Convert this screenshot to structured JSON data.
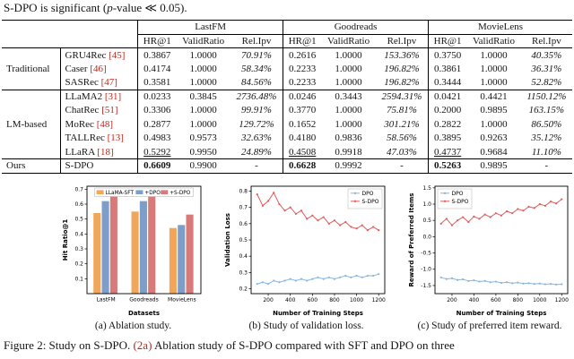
{
  "colors": {
    "citation": "#bb2a20",
    "rule": "#000000"
  },
  "page": {
    "top_text_prefix": "S-DPO is significant (",
    "top_text_italic": "p",
    "top_text_suffix": "-value ≪ 0.05)."
  },
  "table": {
    "dataset_headers": [
      "LastFM",
      "Goodreads",
      "MovieLens"
    ],
    "sub_headers": [
      "HR@1",
      "ValidRatio",
      "Rel.Ipv"
    ],
    "rows": [
      {
        "group": "Traditional",
        "group_span": 3,
        "rule_above": false,
        "method": "GRU4Rec",
        "cite": "[45]",
        "hr_style": "",
        "values": [
          "0.3867",
          "1.0000",
          "70.91%",
          "0.2616",
          "1.0000",
          "153.36%",
          "0.3750",
          "1.0000",
          "40.35%"
        ]
      },
      {
        "method": "Caser",
        "cite": "[46]",
        "hr_style": "",
        "values": [
          "0.4174",
          "1.0000",
          "58.34%",
          "0.2233",
          "1.0000",
          "196.82%",
          "0.3861",
          "1.0000",
          "36.31%"
        ]
      },
      {
        "method": "SASRec",
        "cite": "[47]",
        "hr_style": "",
        "values": [
          "0.3581",
          "1.0000",
          "84.56%",
          "0.2233",
          "1.0000",
          "196.82%",
          "0.3444",
          "1.0000",
          "52.82%"
        ]
      },
      {
        "group": "LM-based",
        "group_span": 5,
        "rule_above": true,
        "method": "LLaMA2",
        "cite": "[31]",
        "hr_style": "",
        "values": [
          "0.0233",
          "0.3845",
          "2736.48%",
          "0.0246",
          "0.3443",
          "2594.31%",
          "0.0421",
          "0.4421",
          "1150.12%"
        ]
      },
      {
        "method": "ChatRec",
        "cite": "[51]",
        "hr_style": "",
        "values": [
          "0.3306",
          "1.0000",
          "99.91%",
          "0.3770",
          "1.0000",
          "75.81%",
          "0.2000",
          "0.9895",
          "163.15%"
        ]
      },
      {
        "method": "MoRec",
        "cite": "[48]",
        "hr_style": "",
        "values": [
          "0.2877",
          "1.0000",
          "129.72%",
          "0.1652",
          "1.0000",
          "301.21%",
          "0.2822",
          "1.0000",
          "86.50%"
        ]
      },
      {
        "method": "TALLRec",
        "cite": "[13]",
        "hr_style": "",
        "values": [
          "0.4983",
          "0.9573",
          "32.63%",
          "0.4180",
          "0.9836",
          "58.56%",
          "0.3895",
          "0.9263",
          "35.12%"
        ]
      },
      {
        "method": "LLaRA",
        "cite": "[18]",
        "hr_style": "underline",
        "values": [
          "0.5292",
          "0.9950",
          "24.89%",
          "0.4508",
          "0.9918",
          "47.03%",
          "0.4737",
          "0.9684",
          "11.10%"
        ]
      },
      {
        "group": "Ours",
        "group_span": 1,
        "rule_above": true,
        "method": "S-DPO",
        "cite": "",
        "hr_style": "bold",
        "values": [
          "0.6609",
          "0.9900",
          "-",
          "0.6628",
          "0.9992",
          "-",
          "0.5263",
          "0.9895",
          "-"
        ]
      }
    ]
  },
  "figure": {
    "captions": [
      "(a) Ablation study.",
      "(b) Study of validation loss.",
      "(c) Study of preferred item reward."
    ],
    "main_caption_prefix": "Figure 2: Study on S-DPO. ",
    "main_caption_link": "(2a)",
    "main_caption_suffix": " Ablation study of S-DPO compared with SFT and DPO on three"
  },
  "chart_data": [
    {
      "type": "bar",
      "title": "",
      "xlabel": "Datasets",
      "ylabel": "Hit Ratio@1",
      "categories": [
        "LastFM",
        "Goodreads",
        "MovieLens"
      ],
      "series": [
        {
          "name": "LLaMA-SFT",
          "color": "#f2a65a",
          "values": [
            0.54,
            0.55,
            0.44
          ]
        },
        {
          "name": "+DPO",
          "color": "#7d9ec8",
          "values": [
            0.62,
            0.62,
            0.46
          ]
        },
        {
          "name": "+S-DPO",
          "color": "#d97a7a",
          "values": [
            0.66,
            0.66,
            0.53
          ]
        }
      ],
      "ylim": [
        0,
        0.72
      ],
      "yticks": [
        0.1,
        0.2,
        0.3,
        0.4,
        0.5,
        0.6,
        0.7
      ],
      "legend_position": "top",
      "grid": false
    },
    {
      "type": "line",
      "title": "",
      "xlabel": "Number of Training Steps",
      "ylabel": "Validation Loss",
      "x": [
        100,
        150,
        200,
        250,
        300,
        350,
        400,
        450,
        500,
        550,
        600,
        650,
        700,
        750,
        800,
        850,
        900,
        950,
        1000,
        1050,
        1100,
        1150,
        1200
      ],
      "series": [
        {
          "name": "DPO",
          "color": "#8ab6dd",
          "values": [
            0.23,
            0.24,
            0.23,
            0.25,
            0.24,
            0.25,
            0.26,
            0.25,
            0.26,
            0.25,
            0.26,
            0.27,
            0.26,
            0.27,
            0.26,
            0.27,
            0.28,
            0.27,
            0.28,
            0.27,
            0.28,
            0.28,
            0.29
          ]
        },
        {
          "name": "S-DPO",
          "color": "#e15d5d",
          "values": [
            0.78,
            0.71,
            0.74,
            0.79,
            0.72,
            0.68,
            0.7,
            0.66,
            0.68,
            0.63,
            0.65,
            0.62,
            0.64,
            0.6,
            0.62,
            0.59,
            0.61,
            0.58,
            0.57,
            0.59,
            0.56,
            0.58,
            0.56
          ]
        }
      ],
      "ylim": [
        0.17,
        0.83
      ],
      "yticks": [
        0.2,
        0.3,
        0.4,
        0.5,
        0.6,
        0.7,
        0.8
      ],
      "xticks": [
        200,
        400,
        600,
        800,
        1000,
        1200
      ],
      "legend_position": "top-right",
      "grid": false
    },
    {
      "type": "line",
      "title": "",
      "xlabel": "Number of Training Steps",
      "ylabel": "Reward of Preferred Items",
      "x": [
        100,
        150,
        200,
        250,
        300,
        350,
        400,
        450,
        500,
        550,
        600,
        650,
        700,
        750,
        800,
        850,
        900,
        950,
        1000,
        1050,
        1100,
        1150,
        1200
      ],
      "series": [
        {
          "name": "DPO",
          "color": "#8ab6dd",
          "values": [
            -1.25,
            -1.3,
            -1.28,
            -1.33,
            -1.31,
            -1.36,
            -1.34,
            -1.38,
            -1.36,
            -1.4,
            -1.38,
            -1.42,
            -1.4,
            -1.43,
            -1.41,
            -1.44,
            -1.43,
            -1.45,
            -1.44,
            -1.46,
            -1.45,
            -1.47,
            -1.46
          ]
        },
        {
          "name": "S-DPO",
          "color": "#e15d5d",
          "values": [
            0.4,
            0.55,
            0.35,
            0.5,
            0.6,
            0.45,
            0.62,
            0.55,
            0.68,
            0.6,
            0.72,
            0.65,
            0.78,
            0.72,
            0.85,
            0.8,
            0.92,
            0.88,
            1.0,
            0.95,
            1.08,
            1.02,
            1.15
          ]
        }
      ],
      "ylim": [
        -1.75,
        1.55
      ],
      "yticks": [
        -1.5,
        -1.0,
        -0.5,
        0.0,
        0.5,
        1.0,
        1.5
      ],
      "xticks": [
        200,
        400,
        600,
        800,
        1000,
        1200
      ],
      "legend_position": "top-left",
      "grid": false
    }
  ]
}
